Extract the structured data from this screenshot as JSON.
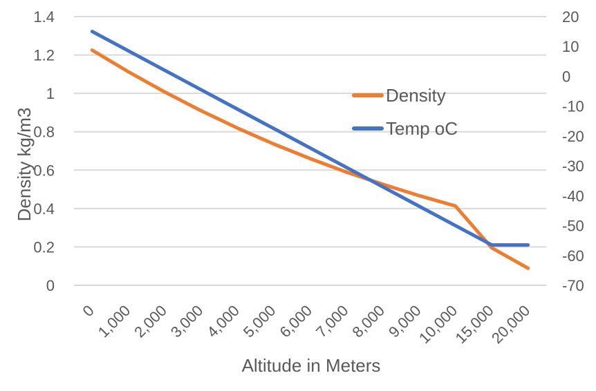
{
  "chart_data": {
    "type": "line",
    "title": "",
    "xlabel": "Altitude in Meters",
    "ylabel": "Density kg/m3",
    "categories": [
      "0",
      "1,000",
      "2,000",
      "3,000",
      "4,000",
      "5,000",
      "6,000",
      "7,000",
      "8,000",
      "9,000",
      "10,000",
      "15,000",
      "20,000"
    ],
    "x_values": [
      0,
      1000,
      2000,
      3000,
      4000,
      5000,
      6000,
      7000,
      8000,
      9000,
      10000,
      15000,
      20000
    ],
    "series": [
      {
        "name": "Density",
        "yaxis": "left",
        "color": "#ED7D31",
        "values": [
          1.225,
          1.112,
          1.007,
          0.909,
          0.819,
          0.736,
          0.66,
          0.59,
          0.526,
          0.467,
          0.413,
          0.195,
          0.089
        ]
      },
      {
        "name": "Temp oC",
        "yaxis": "right",
        "color": "#4472C4",
        "values": [
          15,
          8.5,
          2,
          -4.5,
          -11,
          -17.5,
          -24,
          -30.5,
          -37,
          -43.5,
          -50,
          -56.5,
          -56.5
        ]
      }
    ],
    "left_axis": {
      "min": 0,
      "max": 1.4,
      "step": 0.2,
      "ticks_top_to_bottom": [
        "1.4",
        "1.2",
        "1",
        "0.8",
        "0.6",
        "0.4",
        "0.2",
        "0"
      ]
    },
    "right_axis": {
      "min": -70,
      "max": 20,
      "step": 10,
      "ticks_top_to_bottom": [
        "20",
        "10",
        "0",
        "-10",
        "-20",
        "-30",
        "-40",
        "-50",
        "-60",
        "-70"
      ]
    },
    "grid": true,
    "legend_position": "center",
    "colors": {
      "grid": "#D9D9D9",
      "text": "#595959",
      "background": "#FFFFFF",
      "density_series": "#ED7D31",
      "temp_series": "#4472C4"
    }
  }
}
